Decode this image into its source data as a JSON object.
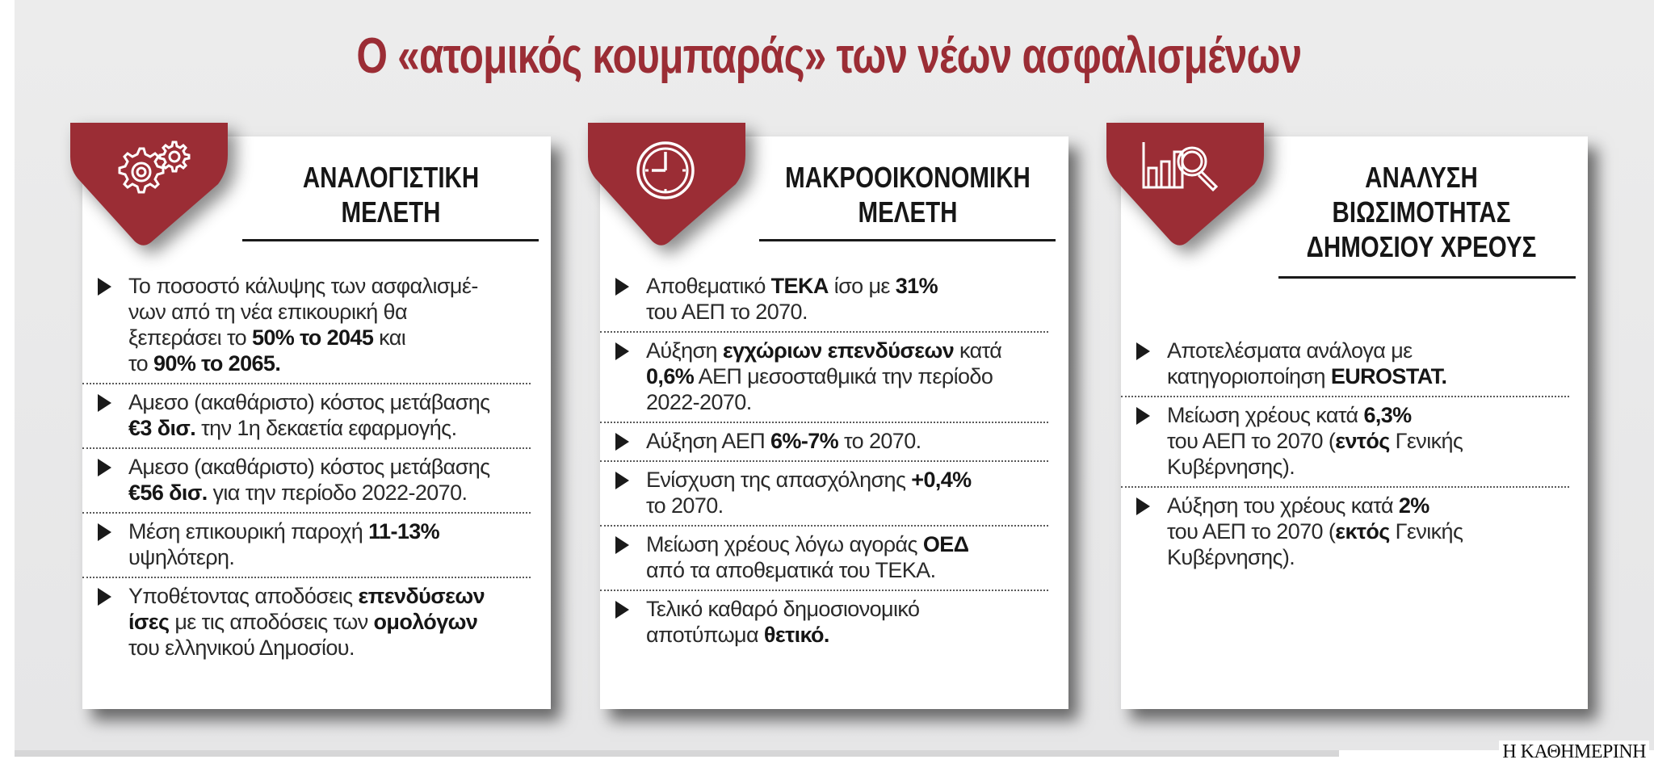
{
  "title": "Ο «ατομικός κουμπαράς» των νέων ασφαλισμένων",
  "colors": {
    "accent": "#9b2d35",
    "background": "#ebebeb",
    "card": "#ffffff",
    "text": "#2a2a2a"
  },
  "cards": [
    {
      "icon": "gears-icon",
      "heading": [
        "ΑΝΑΛΟΓΙΣΤΙΚΗ",
        "ΜΕΛΕΤΗ"
      ],
      "bullets": [
        {
          "parts": [
            {
              "t": "Το ποσοστό κάλυψης των ασφαλισμέ-\nνων από τη νέα επικουρική θα\nξεπεράσει το "
            },
            {
              "t": "50% το 2045",
              "b": true
            },
            {
              "t": " και\nτο "
            },
            {
              "t": "90% το 2065.",
              "b": true
            }
          ]
        },
        {
          "parts": [
            {
              "t": "Αμεσο (ακαθάριστο) κόστος μετάβασης\n"
            },
            {
              "t": "€3 δισ.",
              "b": true
            },
            {
              "t": " την 1η δεκαετία εφαρμογής."
            }
          ]
        },
        {
          "parts": [
            {
              "t": "Αμεσο (ακαθάριστο) κόστος μετάβασης\n"
            },
            {
              "t": "€56 δισ.",
              "b": true
            },
            {
              "t": " για την περίοδο 2022-2070."
            }
          ]
        },
        {
          "parts": [
            {
              "t": "Μέση επικουρική παροχή "
            },
            {
              "t": "11-13%",
              "b": true
            },
            {
              "t": "\nυψηλότερη."
            }
          ]
        },
        {
          "parts": [
            {
              "t": "Υποθέτοντας αποδόσεις "
            },
            {
              "t": "επενδύσεων\nίσες",
              "b": true
            },
            {
              "t": " με τις αποδόσεις των "
            },
            {
              "t": "ομολόγων",
              "b": true
            },
            {
              "t": "\nτου ελληνικού Δημοσίου."
            }
          ]
        }
      ]
    },
    {
      "icon": "clock-icon",
      "heading": [
        "ΜΑΚΡΟΟΙΚΟΝΟΜΙΚΗ",
        "ΜΕΛΕΤΗ"
      ],
      "bullets": [
        {
          "parts": [
            {
              "t": "Αποθεματικό "
            },
            {
              "t": "ΤΕΚΑ",
              "b": true
            },
            {
              "t": " ίσο με "
            },
            {
              "t": "31%",
              "b": true
            },
            {
              "t": "\nτου ΑΕΠ το 2070."
            }
          ]
        },
        {
          "parts": [
            {
              "t": "Αύξηση "
            },
            {
              "t": "εγχώριων επενδύσεων",
              "b": true
            },
            {
              "t": " κατά\n"
            },
            {
              "t": "0,6%",
              "b": true
            },
            {
              "t": " ΑΕΠ μεσοσταθμικά την περίοδο\n2022-2070."
            }
          ]
        },
        {
          "parts": [
            {
              "t": "Αύξηση ΑΕΠ "
            },
            {
              "t": "6%-7%",
              "b": true
            },
            {
              "t": " το 2070."
            }
          ]
        },
        {
          "parts": [
            {
              "t": "Ενίσχυση της απασχόλησης "
            },
            {
              "t": "+0,4%",
              "b": true
            },
            {
              "t": "\nτο 2070."
            }
          ]
        },
        {
          "parts": [
            {
              "t": "Μείωση χρέους λόγω αγοράς "
            },
            {
              "t": "ΟΕΔ",
              "b": true
            },
            {
              "t": "\nαπό τα αποθεματικά του ΤΕΚΑ."
            }
          ]
        },
        {
          "parts": [
            {
              "t": "Τελικό καθαρό δημοσιονομικό\nαποτύπωμα "
            },
            {
              "t": "θετικό.",
              "b": true
            }
          ]
        }
      ]
    },
    {
      "icon": "bar-chart-magnifier-icon",
      "heading": [
        "ΑΝΑΛΥΣΗ",
        "ΒΙΩΣΙΜΟΤΗΤΑΣ",
        "ΔΗΜΟΣΙΟΥ ΧΡΕΟΥΣ"
      ],
      "bullets": [
        {
          "parts": [
            {
              "t": "Αποτελέσματα ανάλογα με\nκατηγοριοποίηση "
            },
            {
              "t": "EUROSTAT.",
              "b": true
            }
          ]
        },
        {
          "parts": [
            {
              "t": "Μείωση χρέους κατά "
            },
            {
              "t": "6,3%",
              "b": true
            },
            {
              "t": "\nτου ΑΕΠ το 2070 ("
            },
            {
              "t": "εντός",
              "b": true
            },
            {
              "t": " Γενικής\nΚυβέρνησης)."
            }
          ]
        },
        {
          "parts": [
            {
              "t": "Αύξηση του χρέους κατά "
            },
            {
              "t": "2%",
              "b": true
            },
            {
              "t": "\nτου ΑΕΠ το 2070 ("
            },
            {
              "t": "εκτός",
              "b": true
            },
            {
              "t": " Γενικής\nΚυβέρνησης)."
            }
          ]
        }
      ]
    }
  ],
  "footer": {
    "brand": "Η ΚΑΘΗΜΕΡΙΝΗ"
  }
}
